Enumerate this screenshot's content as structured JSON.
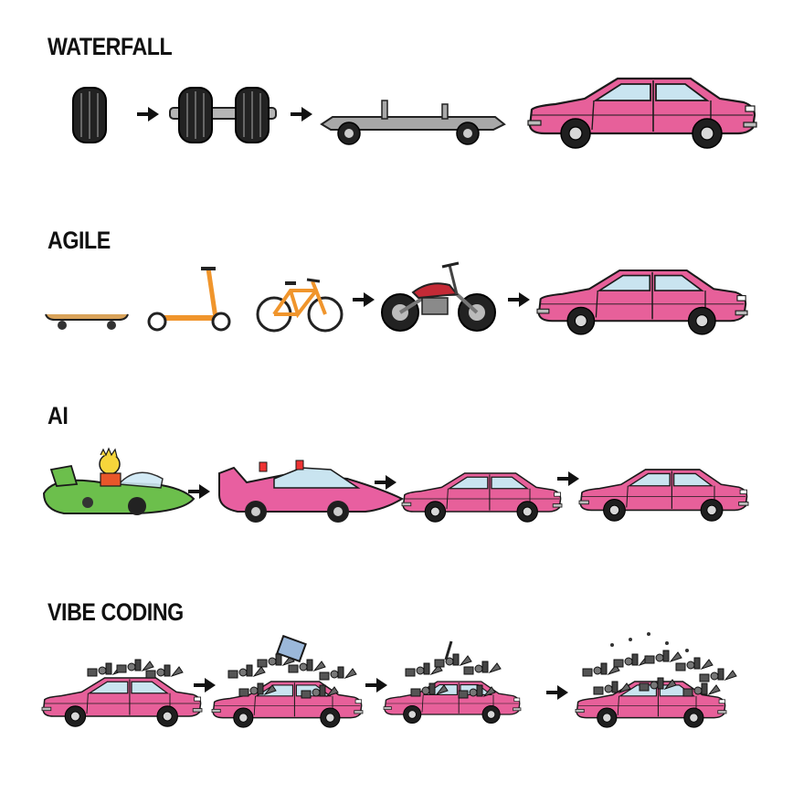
{
  "sections": {
    "waterfall": {
      "title": "WATERFALL"
    },
    "agile": {
      "title": "AGILE"
    },
    "ai": {
      "title": "AI"
    },
    "vibe": {
      "title": "VIBE CODING"
    }
  },
  "colors": {
    "car_pink": "#e7609a",
    "car_outline": "#1a1a1a",
    "sports_car_pink": "#e85fa0",
    "hover_car_green": "#6cbf4c",
    "bike_orange": "#f0952c",
    "motorcycle_red": "#c42a36",
    "chassis_gray": "#a8a8a8",
    "junk_gray": "#4a4a4a",
    "arrow": "#111111"
  },
  "rows": {
    "waterfall": [
      "wheel-icon",
      "axle-icon",
      "chassis-icon",
      "car-icon"
    ],
    "agile": [
      "skateboard-icon",
      "scooter-icon",
      "bicycle-icon",
      "motorcycle-icon",
      "car-icon"
    ],
    "ai": [
      "futuristic-hover-car-icon",
      "pink-sports-car-icon",
      "car-icon",
      "car-icon"
    ],
    "vibe": [
      "junk-car-icon",
      "junk-car-icon",
      "junk-car-icon",
      "junk-pile-car-icon"
    ]
  }
}
